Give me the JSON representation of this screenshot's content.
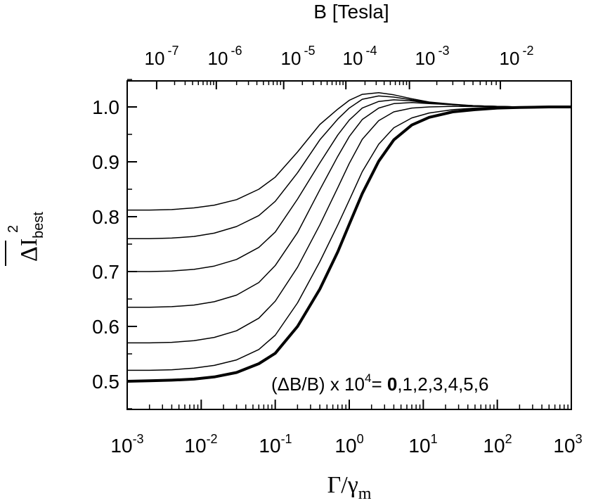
{
  "chart_data": {
    "type": "line",
    "title": "",
    "xlabel": "Γ/γ",
    "xlabel_sub": "m",
    "ylabel": "ΔI",
    "ylabel_sub": "best",
    "ylabel_sup": "2",
    "x_scale": "log",
    "xlim": [
      0.001,
      1000
    ],
    "ylim": [
      0.45,
      1.05
    ],
    "x_tick_base": "10",
    "x_tick_exponents": [
      "-3",
      "-2",
      "-1",
      "0",
      "1",
      "2",
      "3"
    ],
    "y_ticks": [
      "0.5",
      "0.6",
      "0.7",
      "0.8",
      "0.9",
      "1.0"
    ],
    "top_axis": {
      "label": "B [Tesla]",
      "tick_base": "10",
      "tick_exponents": [
        "-7",
        "-6",
        "-5",
        "-4",
        "-3",
        "-2"
      ],
      "tick_positions_xvalue": [
        0.0025,
        0.016,
        0.13,
        0.9,
        6.5,
        110
      ]
    },
    "annotation": {
      "prefix": "(ΔB/B) x 10",
      "sup": "4",
      "eq": "= ",
      "bold": "0",
      "rest": ",1,2,3,4,5,6"
    },
    "x": [
      0.001,
      0.002,
      0.004,
      0.008,
      0.015,
      0.03,
      0.06,
      0.1,
      0.2,
      0.4,
      0.7,
      1,
      1.5,
      2.5,
      4,
      7,
      12,
      25,
      50,
      100,
      200,
      500,
      1000
    ],
    "series": [
      {
        "values": [
          0.5,
          0.501,
          0.502,
          0.504,
          0.508,
          0.516,
          0.532,
          0.551,
          0.6,
          0.668,
          0.736,
          0.786,
          0.842,
          0.901,
          0.94,
          0.967,
          0.981,
          0.991,
          0.995,
          0.998,
          0.999,
          1.0,
          1.0
        ]
      },
      {
        "values": [
          0.52,
          0.52,
          0.521,
          0.524,
          0.529,
          0.539,
          0.558,
          0.584,
          0.643,
          0.718,
          0.785,
          0.83,
          0.882,
          0.932,
          0.962,
          0.98,
          0.989,
          0.995,
          0.998,
          0.999,
          1.0,
          1.0,
          1.0
        ]
      },
      {
        "values": [
          0.57,
          0.57,
          0.571,
          0.574,
          0.58,
          0.592,
          0.615,
          0.646,
          0.708,
          0.785,
          0.853,
          0.897,
          0.941,
          0.975,
          0.991,
          0.998,
          1.0,
          1.001,
          1.001,
          1.0,
          1.0,
          1.0,
          1.0
        ]
      },
      {
        "values": [
          0.635,
          0.635,
          0.636,
          0.639,
          0.645,
          0.657,
          0.68,
          0.711,
          0.771,
          0.849,
          0.91,
          0.946,
          0.977,
          0.998,
          1.006,
          1.008,
          1.006,
          1.004,
          1.002,
          1.001,
          1.0,
          1.0,
          1.0
        ]
      },
      {
        "values": [
          0.7,
          0.7,
          0.701,
          0.704,
          0.71,
          0.722,
          0.744,
          0.772,
          0.832,
          0.898,
          0.949,
          0.976,
          0.998,
          1.01,
          1.013,
          1.011,
          1.007,
          1.004,
          1.002,
          1.001,
          1.0,
          1.0,
          1.0
        ]
      },
      {
        "values": [
          0.76,
          0.76,
          0.761,
          0.764,
          0.77,
          0.782,
          0.802,
          0.828,
          0.88,
          0.94,
          0.978,
          0.998,
          1.014,
          1.02,
          1.018,
          1.013,
          1.008,
          1.004,
          1.002,
          1.001,
          1.0,
          1.0,
          1.0
        ]
      },
      {
        "values": [
          0.812,
          0.812,
          0.813,
          0.816,
          0.821,
          0.831,
          0.85,
          0.872,
          0.918,
          0.968,
          0.996,
          1.012,
          1.023,
          1.026,
          1.022,
          1.015,
          1.009,
          1.005,
          1.002,
          1.001,
          1.0,
          1.0,
          1.0
        ]
      }
    ],
    "grid": false,
    "legend": "none"
  }
}
